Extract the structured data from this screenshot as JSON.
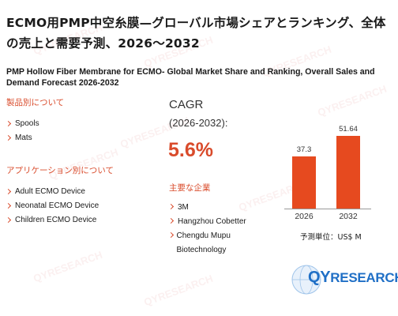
{
  "title_jp": "ECMO用PMP中空糸膜—グローバル市場シェアとランキング、全体の売上と需要予測、2026〜2032",
  "title_en": "PMP Hollow Fiber Membrane for ECMO- Global Market Share and Ranking, Overall Sales and Demand Forecast 2026-2032",
  "product_section": {
    "heading": "製品別について",
    "items": [
      "Spools",
      "Mats"
    ]
  },
  "application_section": {
    "heading": "アプリケーション別について",
    "items": [
      "Adult ECMO Device",
      "Neonatal ECMO Device",
      "Children ECMO Device"
    ]
  },
  "cagr": {
    "label": "CAGR",
    "period": "(2026-2032):",
    "value": "5.6%"
  },
  "companies": {
    "heading": "主要な企業",
    "items": [
      "3M",
      "Hangzhou Cobetter",
      "Chengdu Mupu Biotechnology"
    ]
  },
  "chart_data": {
    "type": "bar",
    "categories": [
      "2026",
      "2032"
    ],
    "values": [
      37.3,
      51.64
    ],
    "value_labels": [
      "37.3",
      "51.64"
    ],
    "unit_label": "予測単位：US$ M",
    "color": "#e64a1f"
  },
  "logo": {
    "text_first": "QY",
    "text_rest": "RESEARCH",
    "color": "#1f6fc6"
  },
  "watermark_text": "QYRESEARCH",
  "colors": {
    "accent": "#d94b2b",
    "bar": "#e64a1f",
    "brand_blue": "#1f6fc6"
  }
}
